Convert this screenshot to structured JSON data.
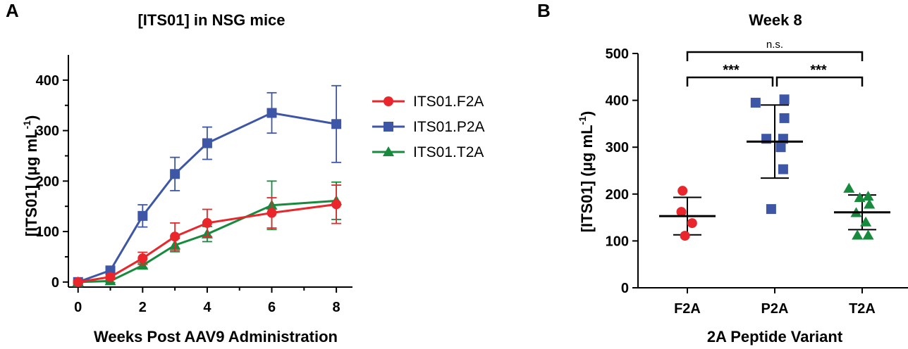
{
  "chart_data": [
    {
      "panel": "A",
      "type": "line",
      "title": "[ITS01] in NSG mice",
      "xlabel": "Weeks Post AAV9 Administration",
      "ylabel_main": "[ITS01] (μg mL",
      "ylabel_sup": "-1",
      "ylabel_close": ")",
      "xlim": [
        -0.3,
        8.5
      ],
      "ylim": [
        -10,
        450
      ],
      "xticks": [
        "0",
        "2",
        "4",
        "6",
        "8"
      ],
      "yticks": [
        "0",
        "100",
        "200",
        "300",
        "400"
      ],
      "series": [
        {
          "name": "ITS01.F2A",
          "color": "#e8262b",
          "marker": "circle",
          "x": [
            0,
            1,
            2,
            3,
            4,
            6,
            8
          ],
          "y": [
            0,
            10,
            47,
            90,
            117,
            137,
            154
          ],
          "err": [
            2,
            5,
            12,
            27,
            27,
            30,
            38
          ]
        },
        {
          "name": "ITS01.P2A",
          "color": "#3d56a6",
          "marker": "square",
          "x": [
            0,
            1,
            2,
            3,
            4,
            6,
            8
          ],
          "y": [
            0,
            23,
            131,
            214,
            275,
            335,
            313
          ],
          "err": [
            2,
            5,
            22,
            33,
            32,
            40,
            76
          ]
        },
        {
          "name": "ITS01.T2A",
          "color": "#178a3d",
          "marker": "triangle",
          "x": [
            0,
            1,
            2,
            3,
            4,
            6,
            8
          ],
          "y": [
            0,
            2,
            33,
            73,
            95,
            152,
            161
          ],
          "err": [
            2,
            3,
            5,
            13,
            15,
            48,
            37
          ]
        }
      ]
    },
    {
      "panel": "B",
      "type": "scatter",
      "title": "Week 8",
      "xlabel": "2A Peptide Variant",
      "ylabel_main": "[ITS01] (μg mL",
      "ylabel_sup": "-1",
      "ylabel_close": ")",
      "ylim": [
        0,
        500
      ],
      "yticks": [
        "0",
        "100",
        "200",
        "300",
        "400",
        "500"
      ],
      "categories": [
        "F2A",
        "P2A",
        "T2A"
      ],
      "groups": [
        {
          "name": "F2A",
          "color": "#e8262b",
          "marker": "circle",
          "points": [
            207,
            162,
            138,
            111
          ],
          "mean": 153,
          "sd": 40
        },
        {
          "name": "P2A",
          "color": "#3d56a6",
          "marker": "square",
          "points": [
            395,
            402,
            362,
            318,
            318,
            300,
            253,
            168
          ],
          "mean": 312,
          "sd": 78
        },
        {
          "name": "T2A",
          "color": "#178a3d",
          "marker": "triangle",
          "points": [
            212,
            195,
            192,
            178,
            160,
            140,
            112,
            112
          ],
          "mean": 161,
          "sd": 37
        }
      ],
      "significance": [
        {
          "from": "F2A",
          "to": "T2A",
          "label": "n.s."
        },
        {
          "from": "F2A",
          "to": "P2A",
          "label": "***"
        },
        {
          "from": "P2A",
          "to": "T2A",
          "label": "***"
        }
      ]
    }
  ]
}
